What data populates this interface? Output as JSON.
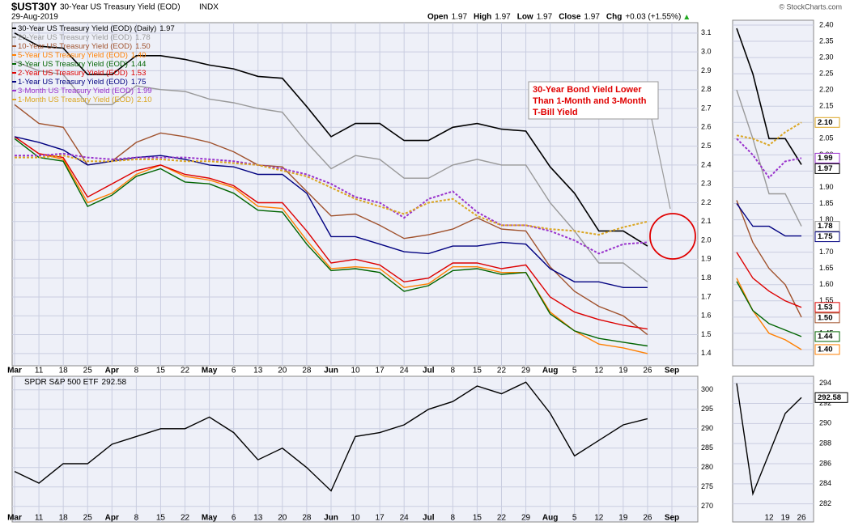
{
  "header": {
    "symbol": "$UST30Y",
    "name": "30-Year US Treasury Yield (EOD)",
    "exchange": "INDX",
    "date": "29-Aug-2019",
    "quote": [
      {
        "label": "Open",
        "value": 1.97
      },
      {
        "label": "High",
        "value": 1.97
      },
      {
        "label": "Low",
        "value": 1.97
      },
      {
        "label": "Close",
        "value": 1.97
      },
      {
        "label": "Chg",
        "value": 0.03,
        "value_label": "+0.03 (+1.55%)"
      }
    ],
    "copyright": "© StockCharts.com"
  },
  "chart_data": [
    {
      "type": "line",
      "categories": [
        "Mar",
        "11",
        "18",
        "25",
        "Apr",
        "8",
        "15",
        "22",
        "May",
        "6",
        "13",
        "20",
        "28",
        "Jun",
        "10",
        "17",
        "24",
        "Jul",
        "8",
        "15",
        "22",
        "29",
        "Aug",
        "5",
        "12",
        "19",
        "26",
        "Sep"
      ],
      "ylim": [
        1.335,
        3.155
      ],
      "yticks": [
        1.4,
        1.5,
        1.6,
        1.7,
        1.8,
        1.9,
        {
          "value": 2.0,
          "label": "2.0"
        },
        2.1,
        2.2,
        2.3,
        2.4,
        2.5,
        2.6,
        2.7,
        2.8,
        2.9,
        {
          "value": 3.0,
          "label": "3.0"
        },
        3.1
      ],
      "grid": true,
      "annotation": [
        "30-Year Bond Yield Lower",
        "Than 1-Month and 3-Month",
        "T-Bill Yield"
      ],
      "zoom": {
        "ylim": [
          1.35,
          2.415
        ],
        "yticks": [
          {
            "value": 2.4,
            "label": "2.40"
          },
          2.35,
          {
            "value": 2.3,
            "label": "2.30"
          },
          2.25,
          {
            "value": 2.2,
            "label": "2.20"
          },
          2.15,
          {
            "value": 2.1,
            "label": "2.10"
          },
          2.05,
          {
            "value": 2.0,
            "label": "2.00"
          },
          1.95,
          {
            "value": 1.9,
            "label": "1.90"
          },
          1.85,
          {
            "value": 1.8,
            "label": "1.80"
          },
          1.75,
          {
            "value": 1.7,
            "label": "1.70"
          },
          1.65,
          {
            "value": 1.6,
            "label": "1.60"
          },
          1.55,
          {
            "value": 1.5,
            "label": "1.50"
          },
          1.45,
          {
            "value": 1.4,
            "label": "1.40"
          }
        ]
      },
      "series": [
        {
          "name": "30-Year US Treasury Yield (EOD) (Daily)",
          "color": "#000000",
          "width": 1.6,
          "values": [
            3.1,
            3.03,
            3.02,
            2.88,
            2.88,
            2.98,
            2.98,
            2.96,
            2.93,
            2.91,
            2.87,
            2.86,
            2.71,
            2.55,
            2.62,
            2.62,
            2.53,
            2.53,
            2.6,
            2.62,
            2.59,
            2.58,
            2.39,
            2.25,
            2.05,
            2.05,
            1.97,
            null
          ]
        },
        {
          "name": "20-Year US Treasury Yield (EOD)",
          "color": "#999999",
          "width": 1.4,
          "values": [
            2.95,
            2.9,
            2.88,
            2.72,
            2.72,
            2.82,
            2.8,
            2.79,
            2.75,
            2.73,
            2.7,
            2.68,
            2.52,
            2.38,
            2.45,
            2.43,
            2.33,
            2.33,
            2.4,
            2.43,
            2.4,
            2.4,
            2.2,
            2.05,
            1.88,
            1.88,
            1.78,
            null
          ]
        },
        {
          "name": "10-Year US Treasury Yield (EOD)",
          "color": "#a0522d",
          "width": 1.4,
          "values": [
            2.72,
            2.62,
            2.6,
            2.4,
            2.42,
            2.52,
            2.57,
            2.55,
            2.52,
            2.47,
            2.4,
            2.39,
            2.26,
            2.13,
            2.14,
            2.08,
            2.01,
            2.03,
            2.06,
            2.12,
            2.06,
            2.05,
            1.86,
            1.73,
            1.65,
            1.6,
            1.5,
            null
          ],
          "value_labels": [
            null,
            null,
            null,
            null,
            null,
            null,
            null,
            null,
            null,
            null,
            null,
            null,
            null,
            null,
            null,
            null,
            null,
            null,
            null,
            null,
            null,
            null,
            null,
            null,
            null,
            null,
            "1.50",
            null
          ]
        },
        {
          "name": "5-Year US Treasury Yield (EOD)",
          "color": "#ff7f00",
          "width": 1.4,
          "values": [
            2.55,
            2.46,
            2.43,
            2.2,
            2.25,
            2.35,
            2.4,
            2.34,
            2.32,
            2.28,
            2.18,
            2.17,
            2.0,
            1.85,
            1.86,
            1.85,
            1.75,
            1.77,
            1.86,
            1.86,
            1.83,
            1.83,
            1.62,
            1.52,
            1.45,
            1.43,
            1.4,
            null
          ],
          "value_labels": [
            null,
            null,
            null,
            null,
            null,
            null,
            null,
            null,
            null,
            null,
            null,
            null,
            null,
            null,
            null,
            null,
            null,
            null,
            null,
            null,
            null,
            null,
            null,
            null,
            null,
            null,
            "1.40",
            null
          ]
        },
        {
          "name": "3-Year US Treasury Yield (EOD)",
          "color": "#006400",
          "width": 1.4,
          "values": [
            2.54,
            2.44,
            2.42,
            2.18,
            2.24,
            2.34,
            2.38,
            2.31,
            2.3,
            2.25,
            2.16,
            2.15,
            1.98,
            1.84,
            1.85,
            1.83,
            1.73,
            1.76,
            1.84,
            1.85,
            1.82,
            1.83,
            1.61,
            1.52,
            1.48,
            1.46,
            1.44,
            null
          ]
        },
        {
          "name": "2-Year US Treasury Yield (EOD)",
          "color": "#dd0000",
          "width": 1.4,
          "values": [
            2.55,
            2.46,
            2.44,
            2.23,
            2.3,
            2.37,
            2.4,
            2.35,
            2.33,
            2.29,
            2.2,
            2.2,
            2.05,
            1.88,
            1.9,
            1.87,
            1.78,
            1.8,
            1.88,
            1.88,
            1.85,
            1.87,
            1.7,
            1.62,
            1.58,
            1.55,
            1.53,
            null
          ]
        },
        {
          "name": "1-Year US Treasury Yield (EOD)",
          "color": "#000080",
          "width": 1.4,
          "values": [
            2.55,
            2.52,
            2.48,
            2.4,
            2.42,
            2.44,
            2.45,
            2.43,
            2.4,
            2.39,
            2.35,
            2.35,
            2.25,
            2.02,
            2.02,
            1.98,
            1.94,
            1.93,
            1.97,
            1.97,
            1.99,
            1.98,
            1.85,
            1.78,
            1.78,
            1.75,
            1.75,
            null
          ]
        },
        {
          "name": "3-Month US Treasury Yield (EOD)",
          "color": "#9932cc",
          "width": 2,
          "dash": true,
          "values": [
            2.45,
            2.45,
            2.46,
            2.44,
            2.43,
            2.44,
            2.44,
            2.44,
            2.43,
            2.42,
            2.4,
            2.38,
            2.35,
            2.3,
            2.23,
            2.2,
            2.12,
            2.22,
            2.26,
            2.15,
            2.08,
            2.08,
            2.05,
            2.0,
            1.93,
            1.98,
            1.99,
            null
          ]
        },
        {
          "name": "1-Month US Treasury Yield (EOD)",
          "color": "#daa520",
          "width": 2,
          "dash": true,
          "values": [
            2.44,
            2.44,
            2.45,
            2.42,
            2.42,
            2.43,
            2.43,
            2.42,
            2.42,
            2.41,
            2.4,
            2.37,
            2.34,
            2.28,
            2.22,
            2.18,
            2.14,
            2.2,
            2.22,
            2.13,
            2.08,
            2.08,
            2.06,
            2.05,
            2.03,
            2.07,
            2.1,
            null
          ],
          "value_labels": [
            null,
            null,
            null,
            null,
            null,
            null,
            null,
            null,
            null,
            null,
            null,
            null,
            null,
            null,
            null,
            null,
            null,
            null,
            null,
            null,
            null,
            null,
            null,
            null,
            null,
            null,
            "2.10",
            null
          ]
        }
      ]
    },
    {
      "type": "line",
      "ylim": [
        266,
        303.5
      ],
      "yticks": [
        270,
        275,
        280,
        285,
        290,
        295,
        300
      ],
      "grid": true,
      "zoom": {
        "ylim": [
          280.2,
          294.7
        ],
        "yticks": [
          282,
          284,
          286,
          288,
          290,
          292,
          294
        ]
      },
      "series": [
        {
          "name": "SPDR S&P 500 ETF",
          "color": "#000000",
          "width": 1.4,
          "values": [
            279,
            276,
            281,
            281,
            286,
            288,
            290,
            290,
            293,
            289,
            282,
            285,
            280,
            274,
            288,
            289,
            291,
            295,
            297,
            301,
            299,
            302,
            294,
            283,
            287,
            291,
            292.58,
            null
          ]
        }
      ]
    }
  ]
}
